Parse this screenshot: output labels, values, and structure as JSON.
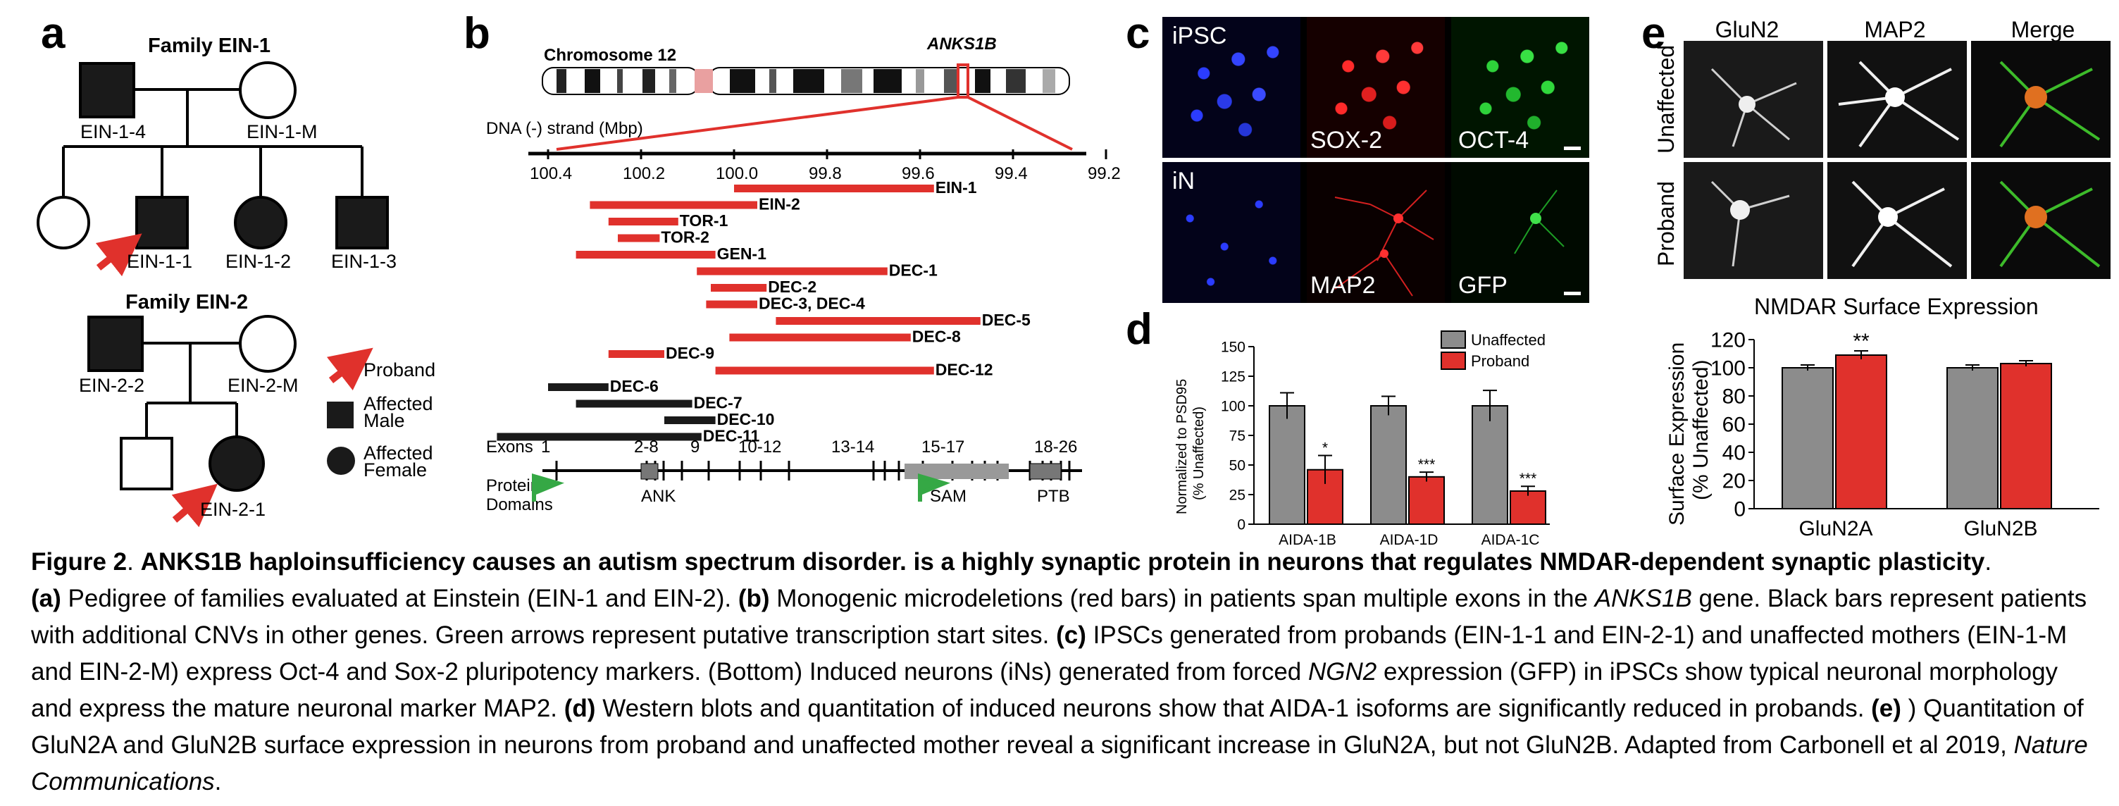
{
  "panels": {
    "a": "a",
    "b": "b",
    "c": "c",
    "d": "d",
    "e": "e"
  },
  "pedigree": {
    "family1_title": "Family EIN-1",
    "family2_title": "Family EIN-2",
    "ids": {
      "ein_1_4": "EIN-1-4",
      "ein_1_m": "EIN-1-M",
      "ein_1_1": "EIN-1-1",
      "ein_1_2": "EIN-1-2",
      "ein_1_3": "EIN-1-3",
      "ein_2_2": "EIN-2-2",
      "ein_2_m": "EIN-2-M",
      "ein_2_1": "EIN-2-1"
    },
    "legend": {
      "proband": "Proband",
      "male_1": "Affected",
      "male_2": "Male",
      "female_1": "Affected",
      "female_2": "Female"
    }
  },
  "genomic": {
    "chromosome_label": "Chromosome 12",
    "gene_label": "ANKS1B",
    "axis_title": "DNA (-) strand (Mbp)",
    "ticks": [
      "100.4",
      "100.2",
      "100.0",
      "99.8",
      "99.6",
      "99.4",
      "99.2"
    ],
    "bars": [
      {
        "name": "EIN-1",
        "start": 100.0,
        "end": 99.57,
        "color": "red"
      },
      {
        "name": "EIN-2",
        "start": 100.31,
        "end": 99.95,
        "color": "red"
      },
      {
        "name": "TOR-1",
        "start": 100.27,
        "end": 100.12,
        "color": "red"
      },
      {
        "name": "TOR-2",
        "start": 100.25,
        "end": 100.16,
        "color": "red"
      },
      {
        "name": "GEN-1",
        "start": 100.34,
        "end": 100.04,
        "color": "red"
      },
      {
        "name": "DEC-1",
        "start": 100.08,
        "end": 99.67,
        "color": "red"
      },
      {
        "name": "DEC-2",
        "start": 100.05,
        "end": 99.93,
        "color": "red"
      },
      {
        "name": "DEC-3, DEC-4",
        "start": 100.06,
        "end": 99.95,
        "color": "red"
      },
      {
        "name": "DEC-5",
        "start": 99.91,
        "end": 99.47,
        "color": "red"
      },
      {
        "name": "DEC-8",
        "start": 100.01,
        "end": 99.62,
        "color": "red"
      },
      {
        "name": "DEC-9",
        "start": 100.27,
        "end": 100.15,
        "color": "red"
      },
      {
        "name": "DEC-12",
        "start": 100.04,
        "end": 99.57,
        "color": "red"
      },
      {
        "name": "DEC-6",
        "start": 100.4,
        "end": 100.27,
        "color": "black"
      },
      {
        "name": "DEC-7",
        "start": 100.34,
        "end": 100.09,
        "color": "black"
      },
      {
        "name": "DEC-10",
        "start": 100.15,
        "end": 100.04,
        "color": "black"
      },
      {
        "name": "DEC-11",
        "start": 100.51,
        "end": 100.07,
        "color": "black"
      }
    ],
    "exons_label": "Exons",
    "exon_groups": [
      "1",
      "2-8",
      "9",
      "10-12",
      "13-14",
      "15-17",
      "18-26"
    ],
    "domains_label_1": "Protein",
    "domains_label_2": "Domains",
    "domains": [
      "ANK",
      "SAM",
      "PTB"
    ]
  },
  "micrographs": {
    "row1_title": "iPSC",
    "row1_labels": [
      "SOX-2",
      "OCT-4"
    ],
    "row2_title": "iN",
    "row2_labels": [
      "MAP2",
      "GFP"
    ],
    "e_cols": [
      "GluN2",
      "MAP2",
      "Merge"
    ],
    "e_rows": [
      "Unaffected",
      "Proband"
    ]
  },
  "chart_d": {
    "ylabel_1": "Normalized to PSD95",
    "ylabel_2": "(% Unaffected)",
    "legend": [
      "Unaffected",
      "Proband"
    ]
  },
  "chart_e": {
    "title": "NMDAR Surface Expression",
    "ylabel_1": "Surface Expression",
    "ylabel_2": "(% Unaffected)"
  },
  "chart_data": [
    {
      "type": "bar",
      "categories": [
        "AIDA-1B",
        "AIDA-1D",
        "AIDA-1C"
      ],
      "series": [
        {
          "name": "Unaffected",
          "values": [
            100,
            100,
            100
          ],
          "errors": [
            11,
            8,
            13
          ],
          "color": "#8c8c8c"
        },
        {
          "name": "Proband",
          "values": [
            46,
            40,
            28
          ],
          "errors": [
            12,
            4,
            4
          ],
          "color": "#e0312c"
        }
      ],
      "significance": [
        "*",
        "***",
        "***"
      ],
      "yticks": [
        0,
        25,
        50,
        75,
        100,
        125,
        150
      ],
      "ylim": [
        0,
        150
      ]
    },
    {
      "type": "bar",
      "categories": [
        "GluN2A",
        "GluN2B"
      ],
      "series": [
        {
          "name": "Unaffected",
          "values": [
            100,
            100
          ],
          "errors": [
            2,
            2
          ],
          "color": "#8c8c8c"
        },
        {
          "name": "Proband",
          "values": [
            109,
            103
          ],
          "errors": [
            3,
            2
          ],
          "color": "#e0312c"
        }
      ],
      "significance": [
        "**",
        ""
      ],
      "yticks": [
        0,
        20,
        40,
        60,
        80,
        100,
        120
      ],
      "ylim": [
        0,
        120
      ]
    }
  ],
  "caption": {
    "fig": "Figure 2",
    "dot": ". ",
    "title": "ANKS1B haploinsufficiency causes an autism spectrum disorder.  is a highly synaptic protein in neurons that regulates NMDAR-dependent synaptic plasticity",
    "title_end": ".",
    "a_tag": "(a)",
    "a_text": " Pedigree of families evaluated at Einstein (EIN-1 and EIN-2). ",
    "b_tag": "(b)",
    "b_text1": " Monogenic microdeletions (red bars) in patients span multiple exons in the ",
    "b_gene": "ANKS1B",
    "b_text2": " gene. Black bars represent patients with additional CNVs in other genes. Green arrows represent putative transcription start sites. ",
    "c_tag": "(c)",
    "c_text1": " IPSCs generated from probands (EIN-1-1 and EIN-2-1) and unaffected mothers (EIN-1-M and EIN-2-M) express Oct-4 and Sox-2 pluripotency markers. (Bottom) Induced neurons (iNs) generated from forced ",
    "c_gene": "NGN2",
    "c_text2": " expression (GFP) in iPSCs show typical neuronal morphology and express the mature neuronal marker MAP2. ",
    "d_tag": "(d)",
    "d_text": " Western blots and quantitation of induced neurons show that AIDA-1 isoforms are significantly reduced in probands. ",
    "e_tag": "(e)",
    "e_text": " ) Quantitation of GluN2A and GluN2B surface expression in neurons from proband and unaffected mother reveal a significant increase in GluN2A, but not GluN2B. Adapted from Carbonell et al 2019, ",
    "journal": "Nature Communications",
    "end": "."
  }
}
